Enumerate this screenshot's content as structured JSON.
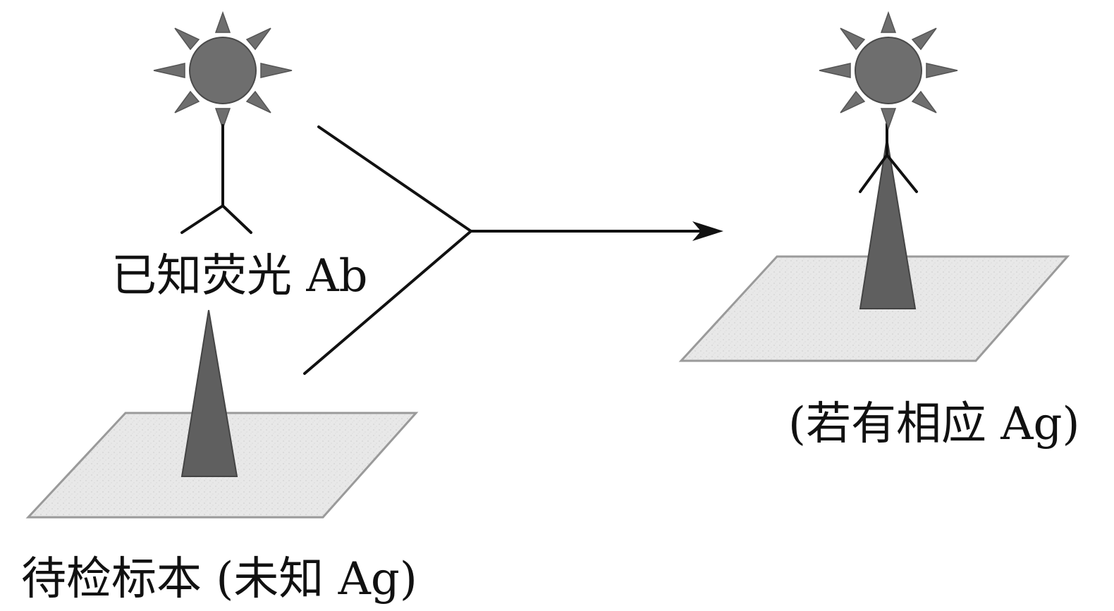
{
  "labels": {
    "antibody": "已知荧光 Ab",
    "specimen": "待检标本 (未知 Ag)",
    "result": "(若有相应 Ag)"
  },
  "colors": {
    "background": "#ffffff",
    "ink": "#111111",
    "fluorophore": "#6e6e6e",
    "antigen": "#5f5f5f",
    "slide_fill": "#e6e6e6",
    "slide_stroke": "#9a9a9a"
  },
  "icons": {
    "fluorophore": "sun-icon",
    "antibody": "y-shaped-antibody-icon",
    "antigen": "cone-antigen-icon",
    "slide": "parallelogram-slide-icon"
  }
}
